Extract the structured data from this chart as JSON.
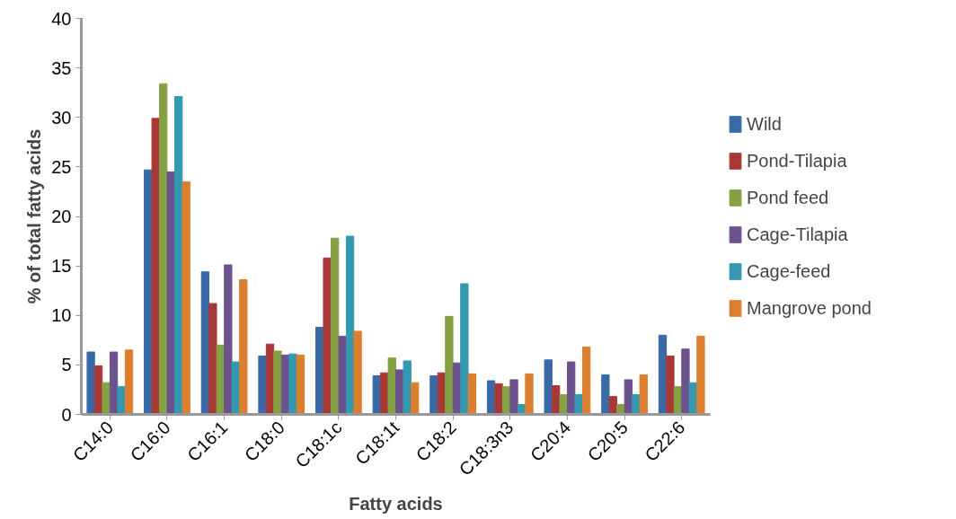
{
  "chart_data": {
    "type": "bar",
    "xlabel": "Fatty acids",
    "ylabel": "% of total fatty acids",
    "categories": [
      "C14:0",
      "C16:0",
      "C16:1",
      "C18:0",
      "C18:1c",
      "C18:1t",
      "C18:2",
      "C18:3n3",
      "C20:4",
      "C20:5",
      "C22:6"
    ],
    "series": [
      {
        "name": "Wild",
        "color": "#3a6aa6",
        "values": [
          6.3,
          24.7,
          14.4,
          5.9,
          8.8,
          3.9,
          3.9,
          3.4,
          5.5,
          4.0,
          8.0
        ]
      },
      {
        "name": "Pond-Tilapia",
        "color": "#a83836",
        "values": [
          4.9,
          29.9,
          11.2,
          7.1,
          15.8,
          4.2,
          4.2,
          3.1,
          2.9,
          1.8,
          5.9
        ]
      },
      {
        "name": "Pond feed",
        "color": "#86a044",
        "values": [
          3.2,
          33.4,
          7.0,
          6.4,
          17.8,
          5.7,
          9.9,
          2.8,
          2.0,
          1.0,
          2.8
        ]
      },
      {
        "name": "Cage-Tilapia",
        "color": "#6b528c",
        "values": [
          6.3,
          24.5,
          15.1,
          6.0,
          7.9,
          4.5,
          5.2,
          3.5,
          5.3,
          3.5,
          6.6
        ]
      },
      {
        "name": "Cage-feed",
        "color": "#3398b0",
        "values": [
          2.8,
          32.1,
          5.3,
          6.1,
          18.0,
          5.4,
          13.2,
          1.0,
          2.0,
          2.0,
          3.2
        ]
      },
      {
        "name": "Mangrove pond",
        "color": "#db7f2f",
        "values": [
          6.5,
          23.5,
          13.6,
          6.0,
          8.4,
          3.2,
          4.1,
          4.1,
          6.8,
          4.0,
          7.9
        ]
      }
    ],
    "ylim": [
      0,
      40
    ],
    "yticks": [
      0,
      5,
      10,
      15,
      20,
      25,
      30,
      35,
      40
    ],
    "grid": false,
    "legend": "right"
  }
}
